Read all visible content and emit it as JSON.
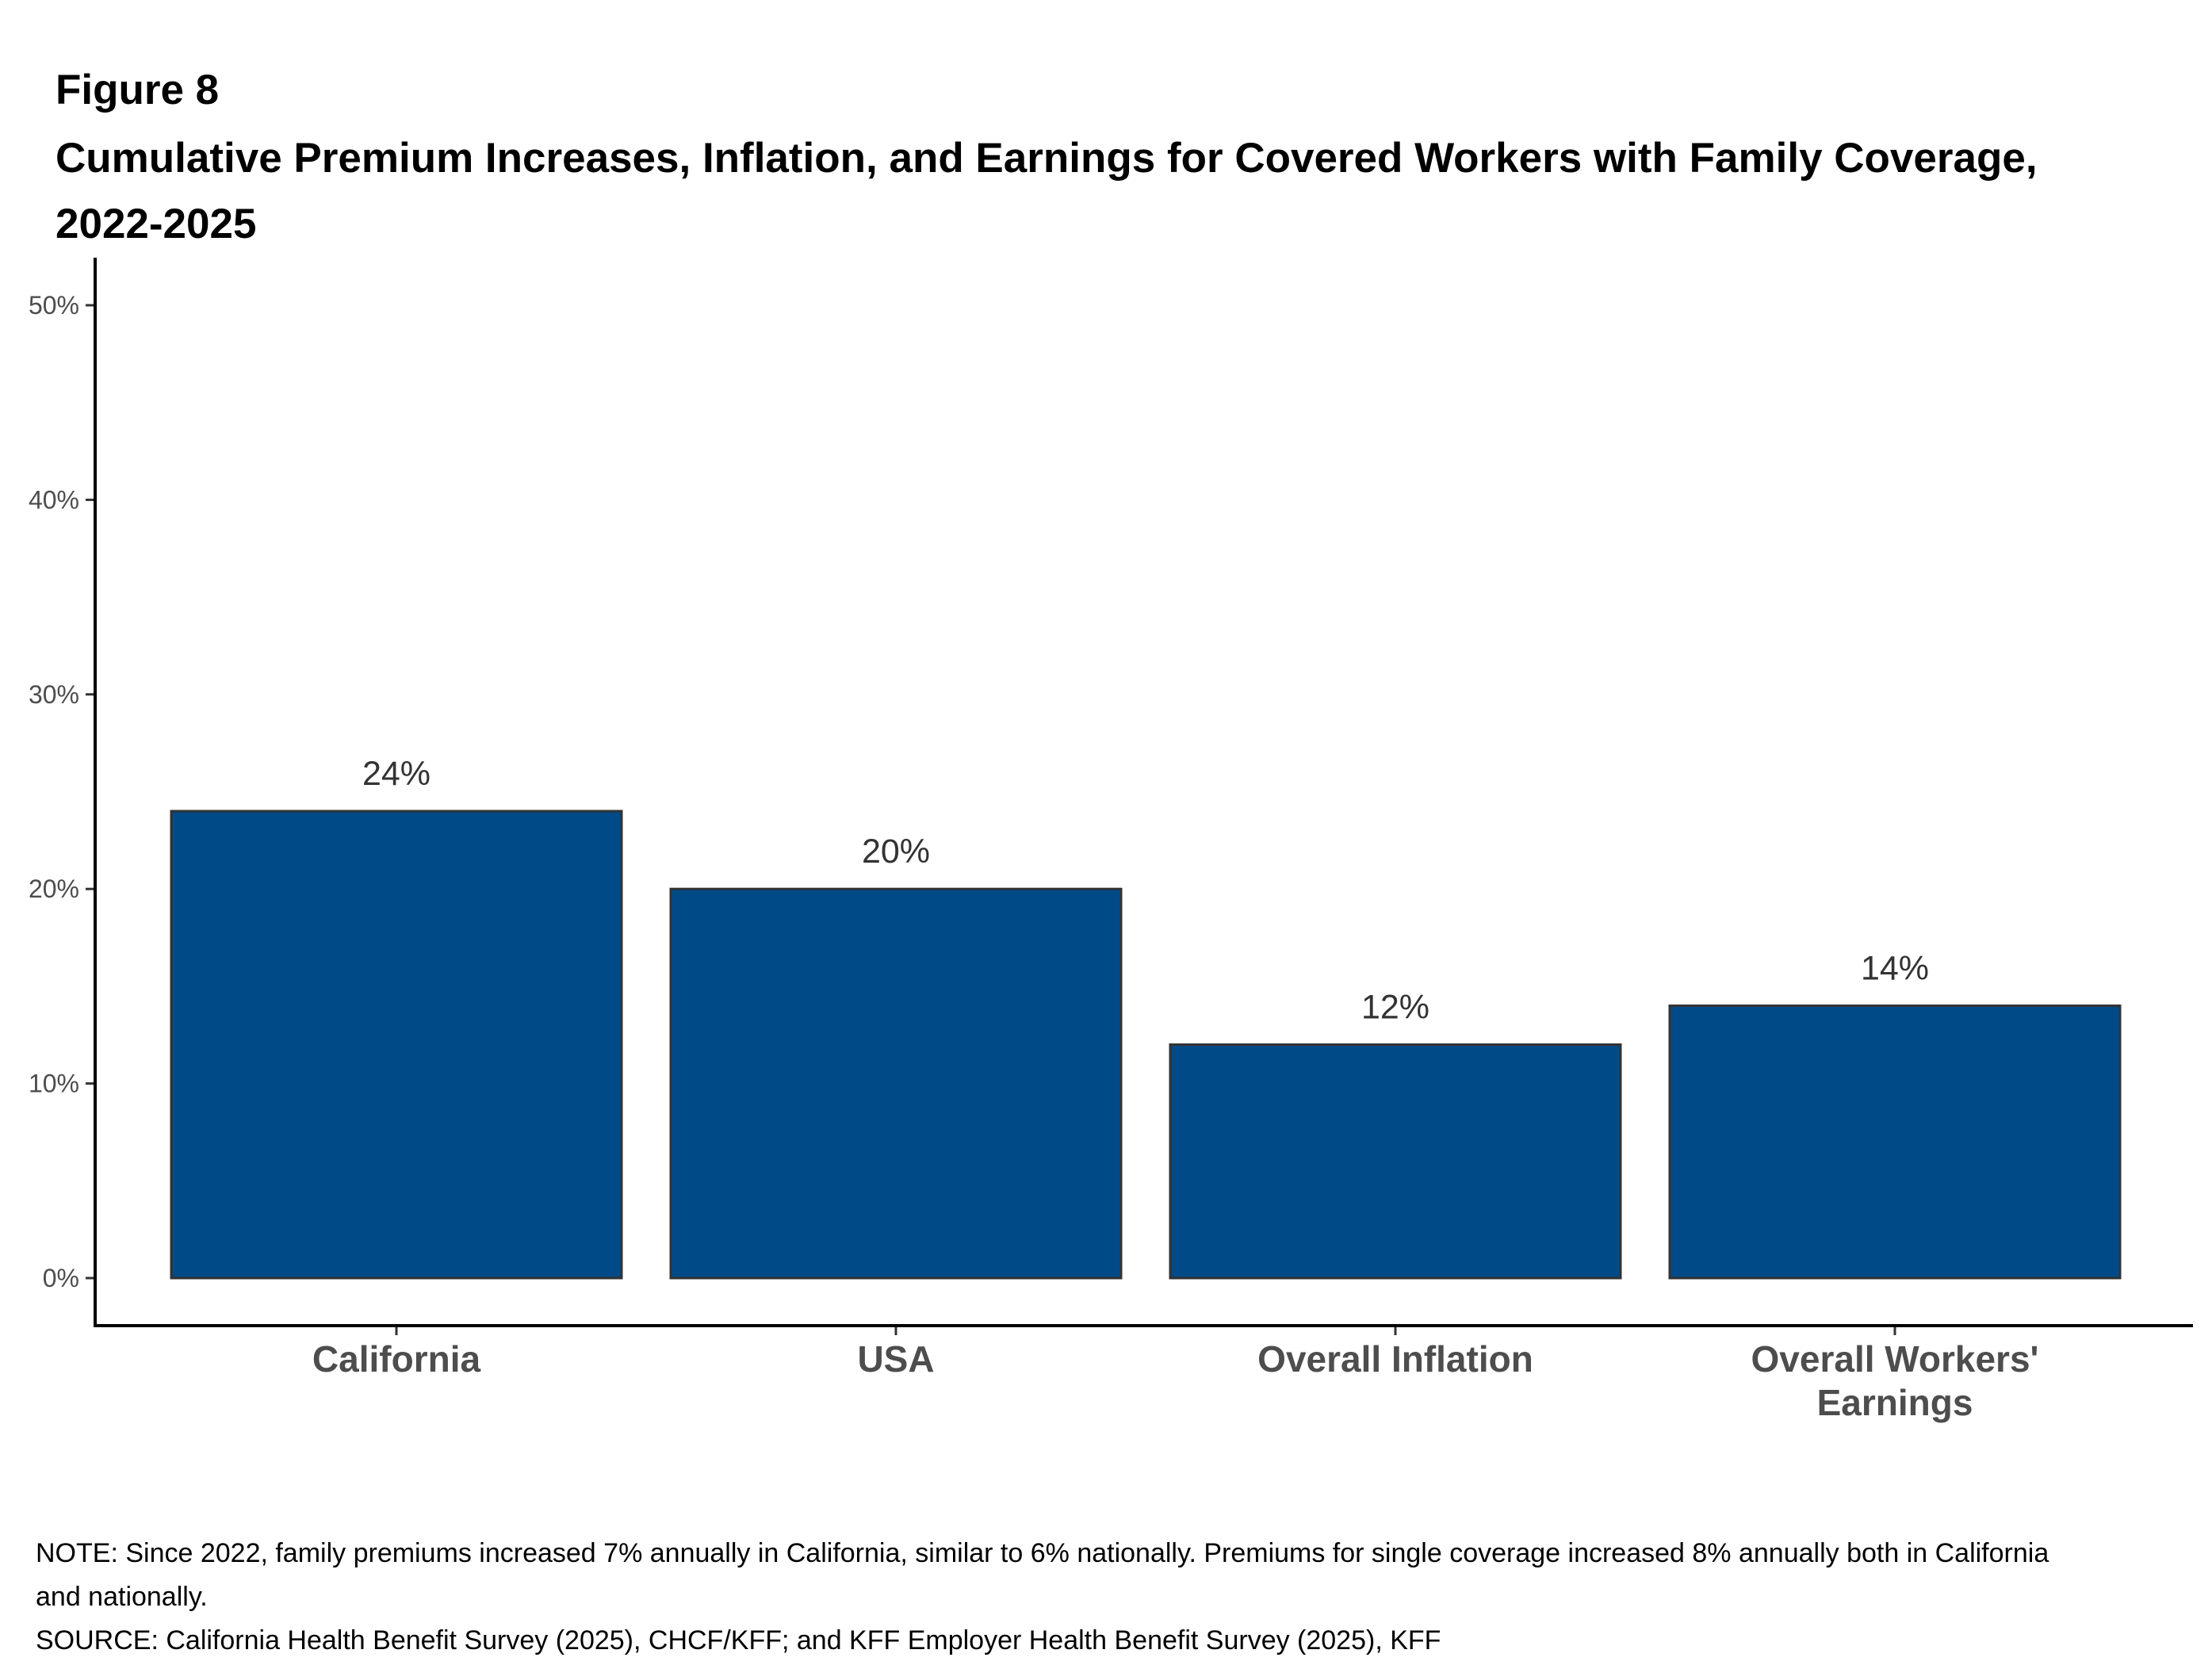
{
  "figure_label": "Figure 8",
  "title": "Cumulative Premium Increases, Inflation, and Earnings for Covered Workers with Family Coverage, 2022-2025",
  "note": "NOTE: Since 2022, family premiums increased 7% annually in California, similar to 6% nationally. Premiums for single coverage increased 8% annually both in California and nationally.",
  "source": "SOURCE: California Health Benefit Survey (2025), CHCF/KFF; and KFF Employer Health Benefit Survey (2025), KFF",
  "colors": {
    "bar_fill": "#004B87",
    "bar_stroke": "#333333",
    "axis": "#000000"
  },
  "chart_data": {
    "type": "bar",
    "title": "Cumulative Premium Increases, Inflation, and Earnings for Covered Workers with Family Coverage, 2022-2025",
    "xlabel": "",
    "ylabel": "",
    "categories": [
      [
        "California"
      ],
      [
        "USA"
      ],
      [
        "Overall Inflation"
      ],
      [
        "Overall Workers'",
        "Earnings"
      ]
    ],
    "values": [
      24,
      20,
      12,
      14
    ],
    "data_labels": [
      "24%",
      "20%",
      "12%",
      "14%"
    ],
    "ylim": [
      0,
      50
    ],
    "yticks": [
      0,
      10,
      20,
      30,
      40,
      50
    ],
    "ytick_labels": [
      "0%",
      "10%",
      "20%",
      "30%",
      "40%",
      "50%"
    ],
    "grid": false,
    "legend": "none"
  }
}
